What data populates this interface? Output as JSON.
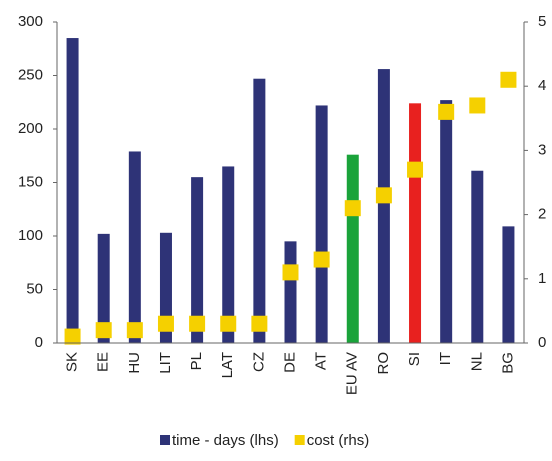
{
  "chart_data": {
    "type": "bar",
    "categories": [
      "SK",
      "EE",
      "HU",
      "LIT",
      "PL",
      "LAT",
      "CZ",
      "DE",
      "AT",
      "EU AV",
      "RO",
      "SI",
      "IT",
      "NL",
      "BG"
    ],
    "series": [
      {
        "name": "time - days (lhs)",
        "type": "bar",
        "color": "#2e3377",
        "colors": [
          "#2e3377",
          "#2e3377",
          "#2e3377",
          "#2e3377",
          "#2e3377",
          "#2e3377",
          "#2e3377",
          "#2e3377",
          "#2e3377",
          "#1aa33a",
          "#2e3377",
          "#e8211f",
          "#2e3377",
          "#2e3377",
          "#2e3377"
        ],
        "values": [
          285,
          102,
          179,
          103,
          155,
          165,
          247,
          95,
          222,
          176,
          256,
          224,
          227,
          161,
          109
        ]
      },
      {
        "name": "cost (rhs)",
        "type": "marker",
        "axis": "y2",
        "color": "#f5d000",
        "values": [
          0.1,
          0.2,
          0.2,
          0.3,
          0.3,
          0.3,
          0.3,
          1.1,
          1.3,
          2.1,
          2.3,
          2.7,
          3.6,
          3.7,
          4.1
        ]
      }
    ],
    "ylim": [
      0,
      300
    ],
    "yticks": [
      0,
      50,
      100,
      150,
      200,
      250,
      300
    ],
    "y2lim": [
      0,
      5
    ],
    "y2ticks": [
      0,
      1,
      2,
      3,
      4,
      5
    ],
    "grid": false,
    "legend": "bottom"
  }
}
